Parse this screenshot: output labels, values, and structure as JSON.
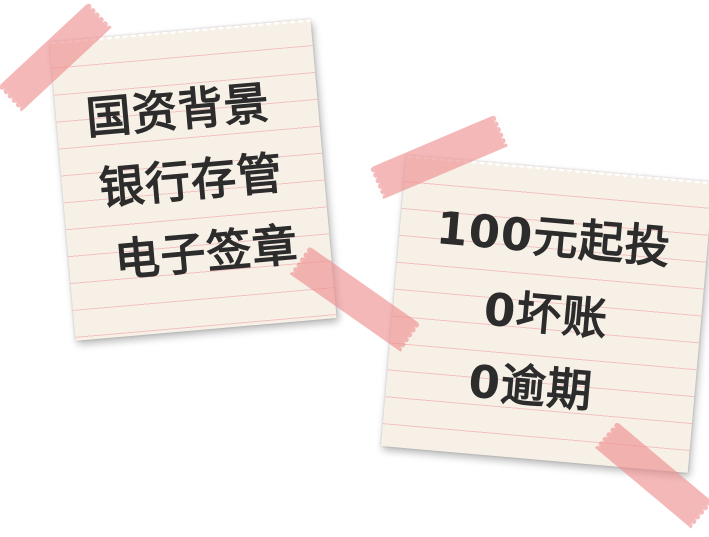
{
  "left_note": {
    "lines": [
      "国资背景",
      "银行存管",
      "电子签章"
    ]
  },
  "right_note": {
    "lines": [
      "100元起投",
      "0坏账",
      "0逾期"
    ]
  },
  "colors": {
    "paper": "#f7f0e6",
    "paper_rule_line": "#f2c2c2",
    "tape": "#ed8c8c",
    "text": "#2c2c2c"
  }
}
